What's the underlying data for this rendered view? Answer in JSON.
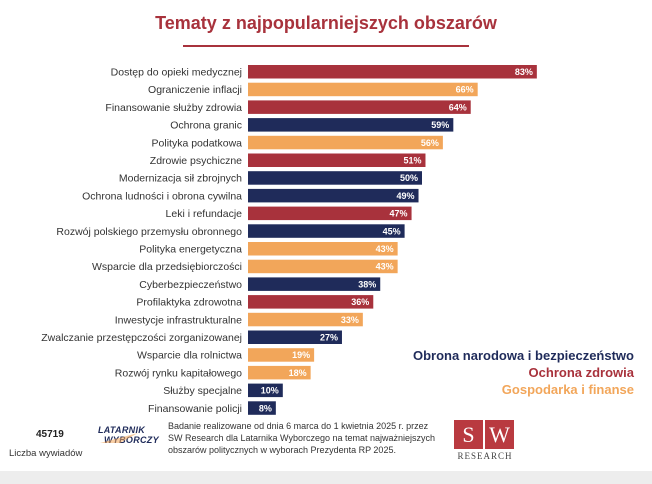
{
  "title": "Tematy z najpopularniejszych obszarów",
  "colors": {
    "defense": "#1f2b5a",
    "health": "#a8323c",
    "economy": "#f2a65a",
    "accent": "#a8323c"
  },
  "legend": {
    "defense": "Obrona narodowa i bezpieczeństwo",
    "health": "Ochrona zdrowia",
    "economy": "Gospodarka i finanse"
  },
  "chart_data": {
    "type": "bar",
    "orientation": "horizontal",
    "title": "Tematy z najpopularniejszych obszarów",
    "xlim": [
      0,
      100
    ],
    "grid": false,
    "legend_position": "bottom-right",
    "categories": [
      "Dostęp do opieki medycznej",
      "Ograniczenie inflacji",
      "Finansowanie służby zdrowia",
      "Ochrona granic",
      "Polityka podatkowa",
      "Zdrowie psychiczne",
      "Modernizacja sił zbrojnych",
      "Ochrona ludności i obrona cywilna",
      "Leki i refundacje",
      "Rozwój polskiego przemysłu obronnego",
      "Polityka energetyczna",
      "Wsparcie dla przedsiębiorczości",
      "Cyberbezpieczeństwo",
      "Profilaktyka zdrowotna",
      "Inwestycje infrastrukturalne",
      "Zwalczanie przestępczości zorganizowanej",
      "Wsparcie dla rolnictwa",
      "Rozwój rynku kapitałowego",
      "Służby specjalne",
      "Finansowanie policji"
    ],
    "values": [
      83,
      66,
      64,
      59,
      56,
      51,
      50,
      49,
      47,
      45,
      43,
      43,
      38,
      36,
      33,
      27,
      19,
      18,
      10,
      8
    ],
    "value_labels": [
      "83%",
      "66%",
      "64%",
      "59%",
      "56%",
      "51%",
      "50%",
      "49%",
      "47%",
      "45%",
      "43%",
      "43%",
      "38%",
      "36%",
      "33%",
      "27%",
      "19%",
      "18%",
      "10%",
      "8%"
    ],
    "groups": [
      "health",
      "economy",
      "health",
      "defense",
      "economy",
      "health",
      "defense",
      "defense",
      "health",
      "defense",
      "economy",
      "economy",
      "defense",
      "health",
      "economy",
      "defense",
      "economy",
      "economy",
      "defense",
      "defense"
    ]
  },
  "footer": {
    "count": "45719",
    "count_label": "Liczba wywiadów",
    "logo_line1": "LATARNIK",
    "logo_line2": "WYBORCZY",
    "note_lines": [
      "Badanie realizowane od dnia 6 marca do 1 kwietnia 2025 r. przez",
      "SW Research dla Latarnika Wyborczego na temat najważniejszych",
      "obszarów politycznych w wyborach Prezydenta RP 2025."
    ],
    "sw_s": "S",
    "sw_w": "W",
    "sw_text": "RESEARCH"
  }
}
